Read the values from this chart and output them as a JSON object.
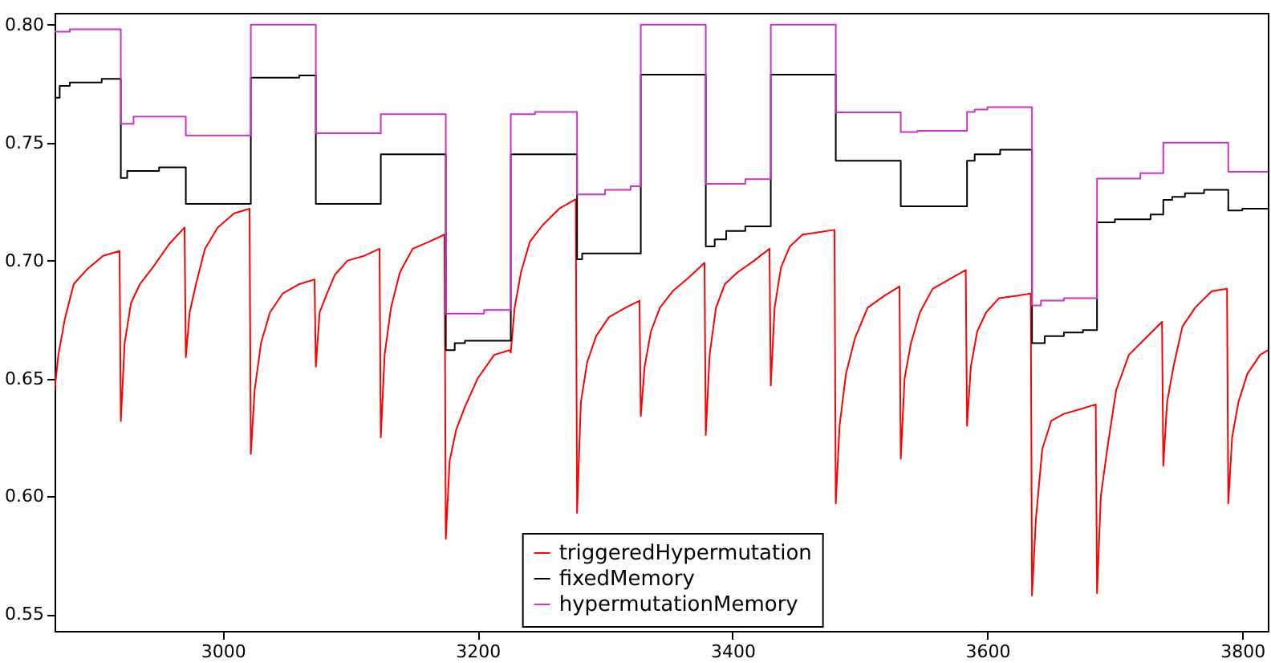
{
  "chart_data": {
    "type": "line",
    "xlim": [
      2868,
      3820
    ],
    "ylim": [
      0.543,
      0.805
    ],
    "xticks": [
      3000,
      3200,
      3400,
      3600,
      3800
    ],
    "yticks": [
      {
        "value": 0.55,
        "label": "0.55"
      },
      {
        "value": 0.6,
        "label": "0.60"
      },
      {
        "value": 0.65,
        "label": "0.65"
      },
      {
        "value": 0.7,
        "label": "0.70"
      },
      {
        "value": 0.75,
        "label": "0.75"
      },
      {
        "value": 0.8,
        "label": "0.80"
      }
    ],
    "legend": "bottom",
    "series": [
      {
        "name": "triggeredHypermutation",
        "type": "line",
        "color": "#ff0000",
        "x": [
          2868,
          2871,
          2876,
          2883,
          2893,
          2906,
          2919,
          2920,
          2923,
          2928,
          2935,
          2945,
          2958,
          2970,
          2971,
          2974,
          2979,
          2986,
          2996,
          3009,
          3021,
          3022,
          3025,
          3030,
          3037,
          3047,
          3060,
          3072,
          3073,
          3076,
          3081,
          3088,
          3098,
          3111,
          3123,
          3124,
          3127,
          3132,
          3139,
          3149,
          3162,
          3174,
          3175,
          3178,
          3183,
          3190,
          3200,
          3213,
          3225,
          3226,
          3229,
          3234,
          3241,
          3251,
          3264,
          3277,
          3278,
          3281,
          3286,
          3293,
          3303,
          3316,
          3327,
          3328,
          3331,
          3336,
          3343,
          3353,
          3366,
          3378,
          3379,
          3382,
          3387,
          3394,
          3404,
          3417,
          3429,
          3430,
          3433,
          3438,
          3445,
          3455,
          3468,
          3480,
          3481,
          3484,
          3489,
          3496,
          3506,
          3519,
          3531,
          3532,
          3535,
          3540,
          3547,
          3557,
          3570,
          3583,
          3584,
          3587,
          3592,
          3599,
          3609,
          3622,
          3634,
          3635,
          3638,
          3643,
          3650,
          3660,
          3673,
          3685,
          3686,
          3689,
          3694,
          3701,
          3711,
          3724,
          3737,
          3738,
          3741,
          3746,
          3753,
          3763,
          3776,
          3788,
          3789,
          3792,
          3797,
          3804,
          3814,
          3820
        ],
        "values": [
          0.645,
          0.66,
          0.675,
          0.69,
          0.696,
          0.702,
          0.704,
          0.632,
          0.665,
          0.682,
          0.69,
          0.697,
          0.707,
          0.714,
          0.659,
          0.678,
          0.69,
          0.705,
          0.714,
          0.72,
          0.722,
          0.618,
          0.645,
          0.665,
          0.678,
          0.686,
          0.69,
          0.692,
          0.655,
          0.678,
          0.685,
          0.694,
          0.7,
          0.702,
          0.705,
          0.625,
          0.66,
          0.68,
          0.695,
          0.705,
          0.708,
          0.711,
          0.582,
          0.615,
          0.628,
          0.638,
          0.65,
          0.66,
          0.662,
          0.661,
          0.68,
          0.695,
          0.708,
          0.715,
          0.722,
          0.726,
          0.593,
          0.64,
          0.657,
          0.668,
          0.676,
          0.68,
          0.683,
          0.634,
          0.655,
          0.67,
          0.68,
          0.687,
          0.693,
          0.699,
          0.626,
          0.66,
          0.68,
          0.69,
          0.695,
          0.7,
          0.705,
          0.647,
          0.68,
          0.697,
          0.706,
          0.711,
          0.712,
          0.713,
          0.597,
          0.63,
          0.652,
          0.667,
          0.68,
          0.685,
          0.689,
          0.616,
          0.65,
          0.665,
          0.678,
          0.688,
          0.692,
          0.696,
          0.63,
          0.655,
          0.67,
          0.678,
          0.684,
          0.685,
          0.686,
          0.558,
          0.59,
          0.62,
          0.632,
          0.635,
          0.637,
          0.639,
          0.559,
          0.6,
          0.62,
          0.645,
          0.66,
          0.667,
          0.674,
          0.613,
          0.64,
          0.655,
          0.672,
          0.68,
          0.687,
          0.688,
          0.597,
          0.625,
          0.64,
          0.652,
          0.66,
          0.662
        ]
      },
      {
        "name": "fixedMemory",
        "type": "step",
        "color": "#000000",
        "x": [
          2868,
          2872,
          2880,
          2905,
          2920,
          2925,
          2950,
          2971,
          3022,
          3060,
          3073,
          3124,
          3175,
          3182,
          3190,
          3226,
          3278,
          3282,
          3328,
          3379,
          3386,
          3395,
          3410,
          3430,
          3481,
          3532,
          3584,
          3590,
          3610,
          3635,
          3645,
          3660,
          3675,
          3686,
          3700,
          3728,
          3738,
          3745,
          3755,
          3770,
          3789,
          3800,
          3820
        ],
        "values": [
          0.769,
          0.774,
          0.7755,
          0.777,
          0.735,
          0.738,
          0.7395,
          0.724,
          0.7775,
          0.7785,
          0.724,
          0.745,
          0.662,
          0.665,
          0.666,
          0.745,
          0.7005,
          0.703,
          0.7788,
          0.706,
          0.709,
          0.7125,
          0.7145,
          0.7788,
          0.7423,
          0.723,
          0.7423,
          0.745,
          0.747,
          0.665,
          0.668,
          0.6695,
          0.6705,
          0.7162,
          0.7175,
          0.7195,
          0.7257,
          0.727,
          0.7285,
          0.73,
          0.7212,
          0.722,
          0.722
        ]
      },
      {
        "name": "hypermutationMemory",
        "type": "step",
        "color": "#cc33cc",
        "x": [
          2868,
          2880,
          2920,
          2930,
          2971,
          3022,
          3073,
          3124,
          3175,
          3205,
          3226,
          3245,
          3278,
          3300,
          3320,
          3328,
          3379,
          3410,
          3430,
          3481,
          3532,
          3545,
          3584,
          3590,
          3600,
          3635,
          3642,
          3660,
          3686,
          3720,
          3738,
          3789,
          3820
        ],
        "values": [
          0.797,
          0.798,
          0.758,
          0.761,
          0.753,
          0.8,
          0.754,
          0.762,
          0.6775,
          0.679,
          0.762,
          0.763,
          0.728,
          0.73,
          0.7315,
          0.8,
          0.7325,
          0.7345,
          0.8,
          0.7628,
          0.7545,
          0.755,
          0.763,
          0.764,
          0.765,
          0.681,
          0.683,
          0.684,
          0.7347,
          0.737,
          0.75,
          0.7376,
          0.7376
        ]
      }
    ]
  }
}
